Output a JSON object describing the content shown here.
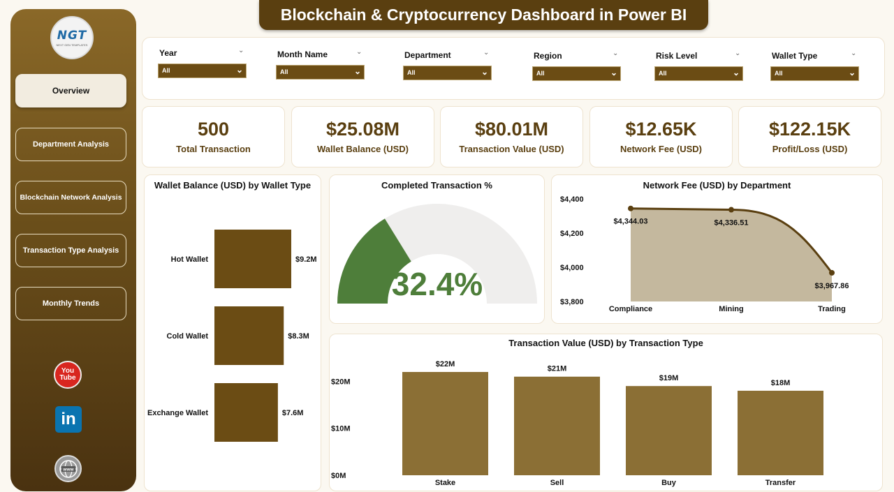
{
  "title": "Blockchain & Cryptocurrency Dashboard in Power BI",
  "logo": {
    "text": "NGT",
    "subtext": "NEXT GEN TEMPLATES"
  },
  "nav": [
    {
      "label": "Overview",
      "active": true
    },
    {
      "label": "Department Analysis"
    },
    {
      "label": "Blockchain Network Analysis"
    },
    {
      "label": "Transaction Type Analysis"
    },
    {
      "label": "Monthly Trends"
    }
  ],
  "social": {
    "youtube": "You Tube",
    "linkedin": "in",
    "web": "www"
  },
  "filters": [
    {
      "label": "Year",
      "value": "All"
    },
    {
      "label": "Month Name",
      "value": "All"
    },
    {
      "label": "Department",
      "value": "All"
    },
    {
      "label": "Region",
      "value": "All"
    },
    {
      "label": "Risk Level",
      "value": "All"
    },
    {
      "label": "Wallet Type",
      "value": "All"
    }
  ],
  "kpis": [
    {
      "value": "500",
      "label": "Total Transaction"
    },
    {
      "value": "$25.08M",
      "label": "Wallet Balance (USD)"
    },
    {
      "value": "$80.01M",
      "label": "Transaction Value (USD)"
    },
    {
      "value": "$12.65K",
      "label": "Network Fee (USD)"
    },
    {
      "value": "$122.15K",
      "label": "Profit/Loss (USD)"
    }
  ],
  "colors": {
    "brown": "#5a3f10",
    "bar": "#6b4c14",
    "bar2": "#8b6f35",
    "area": "#c4b89e",
    "green": "#4e7e3a",
    "gauge_bg": "#efeeed"
  },
  "chart_data": [
    {
      "type": "bar",
      "orientation": "horizontal",
      "title": "Wallet Balance (USD) by Wallet Type",
      "categories": [
        "Hot Wallet",
        "Cold Wallet",
        "Exchange Wallet"
      ],
      "values": [
        9.2,
        8.3,
        7.6
      ],
      "data_labels": [
        "$9.2M",
        "$8.3M",
        "$7.6M"
      ],
      "unit": "M"
    },
    {
      "type": "gauge",
      "title": "Completed Transaction %",
      "value": 32.4,
      "display": "32.4%",
      "ylim": [
        0,
        100
      ]
    },
    {
      "type": "area",
      "title": "Network Fee (USD) by Department",
      "categories": [
        "Compliance",
        "Mining",
        "Trading"
      ],
      "values": [
        4344.03,
        4336.51,
        3967.86
      ],
      "data_labels": [
        "$4,344.03",
        "$4,336.51",
        "$3,967.86"
      ],
      "ylim": [
        3800,
        4400
      ],
      "yticks": [
        "$4,400",
        "$4,200",
        "$4,000",
        "$3,800"
      ]
    },
    {
      "type": "bar",
      "title": "Transaction Value (USD) by Transaction Type",
      "categories": [
        "Stake",
        "Sell",
        "Buy",
        "Transfer"
      ],
      "values": [
        22,
        21,
        19,
        18
      ],
      "data_labels": [
        "$22M",
        "$21M",
        "$19M",
        "$18M"
      ],
      "ylim": [
        0,
        22
      ],
      "yticks": [
        "$20M",
        "$10M",
        "$0M"
      ]
    }
  ]
}
